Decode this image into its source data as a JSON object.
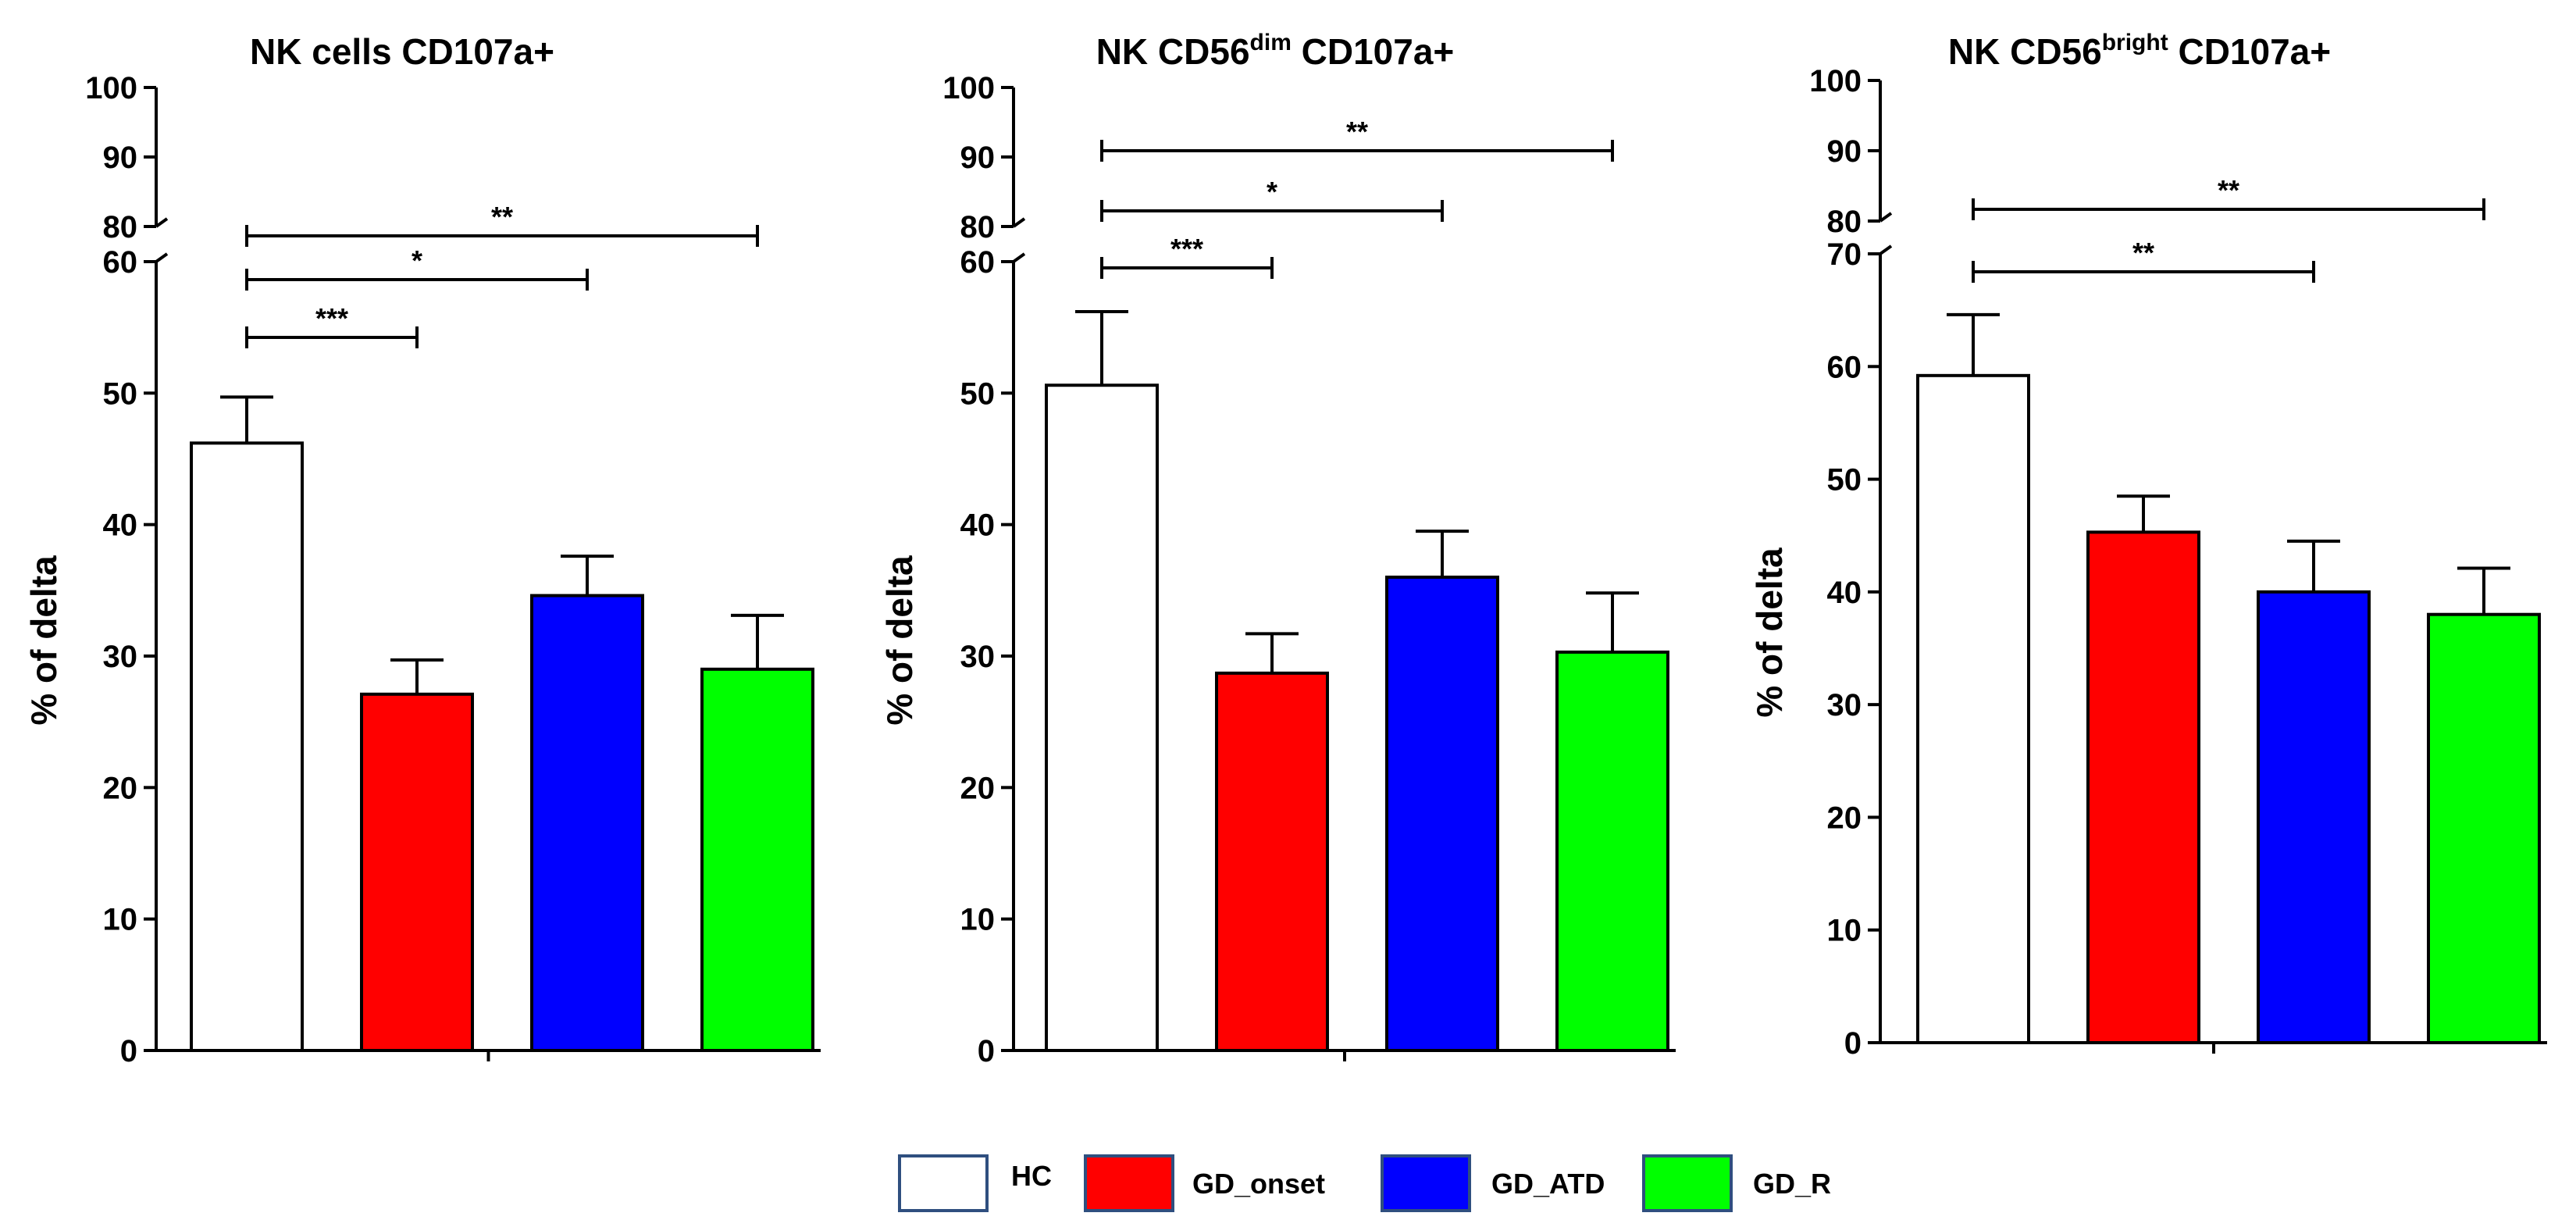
{
  "chart_data": [
    {
      "type": "bar",
      "title_main": "NK cells CD107a+",
      "title_sup": "",
      "title_tail": "",
      "ylabel": "% of delta",
      "categories": [
        "HC",
        "GD_onset",
        "GD_ATD",
        "GD_R"
      ],
      "values": [
        46.2,
        27.1,
        34.6,
        29.0
      ],
      "errors": [
        3.5,
        2.6,
        3.0,
        4.1
      ],
      "lower_ylim": [
        0,
        60
      ],
      "lower_ticks": [
        0,
        10,
        20,
        30,
        40,
        50,
        60
      ],
      "upper_ylim": [
        80,
        100
      ],
      "upper_ticks": [
        80,
        90,
        100
      ],
      "significance": [
        {
          "from": "HC",
          "to": "GD_onset",
          "label": "***"
        },
        {
          "from": "HC",
          "to": "GD_ATD",
          "label": "*"
        },
        {
          "from": "HC",
          "to": "GD_R",
          "label": "**"
        }
      ]
    },
    {
      "type": "bar",
      "title_main": "NK CD56",
      "title_sup": "dim",
      "title_tail": " CD107a+",
      "ylabel": "% of delta",
      "categories": [
        "HC",
        "GD_onset",
        "GD_ATD",
        "GD_R"
      ],
      "values": [
        50.6,
        28.7,
        36.0,
        30.3
      ],
      "errors": [
        5.6,
        3.0,
        3.5,
        4.5
      ],
      "lower_ylim": [
        0,
        60
      ],
      "lower_ticks": [
        0,
        10,
        20,
        30,
        40,
        50,
        60
      ],
      "upper_ylim": [
        80,
        100
      ],
      "upper_ticks": [
        80,
        90,
        100
      ],
      "significance": [
        {
          "from": "HC",
          "to": "GD_onset",
          "label": "***"
        },
        {
          "from": "HC",
          "to": "GD_ATD",
          "label": "*"
        },
        {
          "from": "HC",
          "to": "GD_R",
          "label": "**"
        }
      ]
    },
    {
      "type": "bar",
      "title_main": "NK CD56",
      "title_sup": "bright",
      "title_tail": " CD107a+",
      "ylabel": "% of delta",
      "categories": [
        "HC",
        "GD_onset",
        "GD_ATD",
        "GD_R"
      ],
      "values": [
        59.2,
        45.3,
        40.0,
        38.0
      ],
      "errors": [
        5.4,
        3.2,
        4.5,
        4.1
      ],
      "lower_ylim": [
        0,
        70
      ],
      "lower_ticks": [
        0,
        10,
        20,
        30,
        40,
        50,
        60,
        70
      ],
      "upper_ylim": [
        80,
        100
      ],
      "upper_ticks": [
        80,
        90,
        100
      ],
      "significance": [
        {
          "from": "HC",
          "to": "GD_ATD",
          "label": "**"
        },
        {
          "from": "HC",
          "to": "GD_R",
          "label": "**"
        }
      ]
    }
  ],
  "legend": [
    {
      "label": "HC",
      "color": "#ffffff"
    },
    {
      "label": "GD_onset",
      "color": "#ff0000"
    },
    {
      "label": "GD_ATD",
      "color": "#0000ff"
    },
    {
      "label": "GD_R",
      "color": "#00ff00"
    }
  ],
  "colors": {
    "HC": "#ffffff",
    "GD_onset": "#ff0000",
    "GD_ATD": "#0000ff",
    "GD_R": "#00ff00",
    "legend_border": "#2f4f7f"
  }
}
